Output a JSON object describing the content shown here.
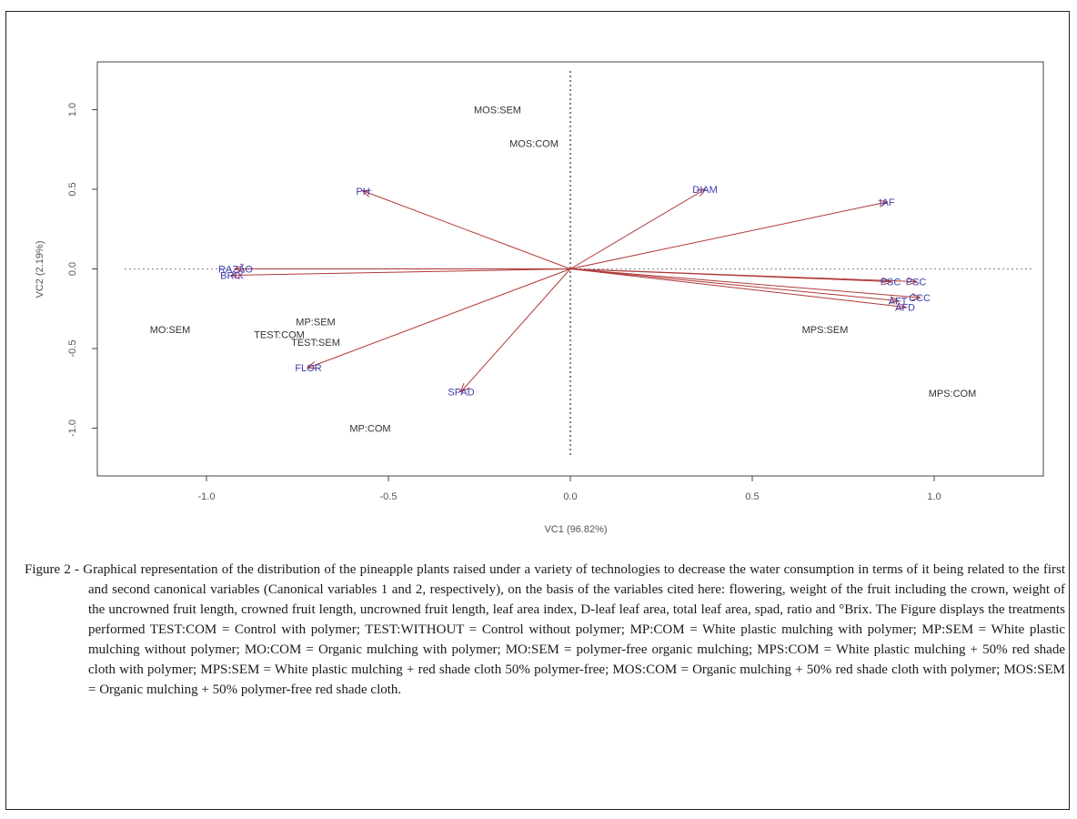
{
  "chart_data": {
    "type": "scatter",
    "xlabel": "VC1 (96.82%)",
    "ylabel": "VC2 (2.19%)",
    "xlim": [
      -1.3,
      1.3
    ],
    "ylim": [
      -1.3,
      1.3
    ],
    "xticks": [
      "-1.0",
      "-0.5",
      "0.0",
      "0.5",
      "1.0"
    ],
    "xtick_values": [
      -1.0,
      -0.5,
      0.0,
      0.5,
      1.0
    ],
    "yticks": [
      "-1.0",
      "-0.5",
      "0.0",
      "0.5",
      "1.0"
    ],
    "ytick_values": [
      -1.0,
      -0.5,
      0.0,
      0.5,
      1.0
    ],
    "reference_lines": {
      "x": 0.0,
      "y": 0.0
    },
    "vectors": [
      {
        "label": "PH",
        "x": -0.57,
        "y": 0.49
      },
      {
        "label": "DIAM",
        "x": 0.37,
        "y": 0.5
      },
      {
        "label": "IAF",
        "x": 0.87,
        "y": 0.42
      },
      {
        "label": "RAZÃO",
        "x": -0.92,
        "y": 0.0
      },
      {
        "label": "BRIX",
        "x": -0.93,
        "y": -0.04
      },
      {
        "label": "FLOR",
        "x": -0.72,
        "y": -0.62
      },
      {
        "label": "SPAD",
        "x": -0.3,
        "y": -0.77
      },
      {
        "label": "PSC",
        "x": 0.88,
        "y": -0.08
      },
      {
        "label": "PSC",
        "x": 0.95,
        "y": -0.08
      },
      {
        "label": "CCC",
        "x": 0.96,
        "y": -0.18
      },
      {
        "label": "AFD",
        "x": 0.92,
        "y": -0.24
      },
      {
        "label": "AFT",
        "x": 0.9,
        "y": -0.2
      }
    ],
    "treatments": [
      {
        "label": "MOS:SEM",
        "x": -0.2,
        "y": 1.0
      },
      {
        "label": "MOS:COM",
        "x": -0.1,
        "y": 0.79
      },
      {
        "label": "MO:SEM",
        "x": -1.1,
        "y": -0.38
      },
      {
        "label": "TEST:COM",
        "x": -0.8,
        "y": -0.41
      },
      {
        "label": "TEST:SEM",
        "x": -0.7,
        "y": -0.46
      },
      {
        "label": "MP:SEM",
        "x": -0.7,
        "y": -0.33
      },
      {
        "label": "MP:COM",
        "x": -0.55,
        "y": -1.0
      },
      {
        "label": "MPS:SEM",
        "x": 0.7,
        "y": -0.38
      },
      {
        "label": "MPS:COM",
        "x": 1.05,
        "y": -0.78
      }
    ],
    "colors": {
      "arrow": "#b03a3a",
      "vector_label": "#3b3bb0",
      "treatment_label": "#333333",
      "axis": "#444444",
      "reference_line": "#555555",
      "zero_line_h": "#999999"
    }
  },
  "caption": {
    "lead": "Figure 2 - ",
    "text": "Graphical representation of the distribution of the pineapple plants raised under a variety of technologies to decrease the water consumption in terms of it being related to the first and second canonical variables (Canonical variables 1 and 2, respectively), on the basis of the variables cited here: flowering, weight of the fruit including the crown, weight of the uncrowned fruit length, crowned fruit length, uncrowned fruit length, leaf area index, D-leaf leaf area, total leaf area, spad, ratio and °Brix. The Figure displays the treatments performed TEST:COM = Control with polymer; TEST:WITHOUT = Control without polymer; MP:COM = White plastic mulching with polymer; MP:SEM = White plastic mulching without polymer; MO:COM = Organic mulching with polymer; MO:SEM = polymer-free organic mulching; MPS:COM = White plastic mulching + 50% red shade cloth with polymer; MPS:SEM = White plastic mulching + red shade cloth 50% polymer-free; MOS:COM = Organic mulching + 50% red shade cloth with polymer; MOS:SEM = Organic mulching + 50% polymer-free red shade cloth."
  }
}
